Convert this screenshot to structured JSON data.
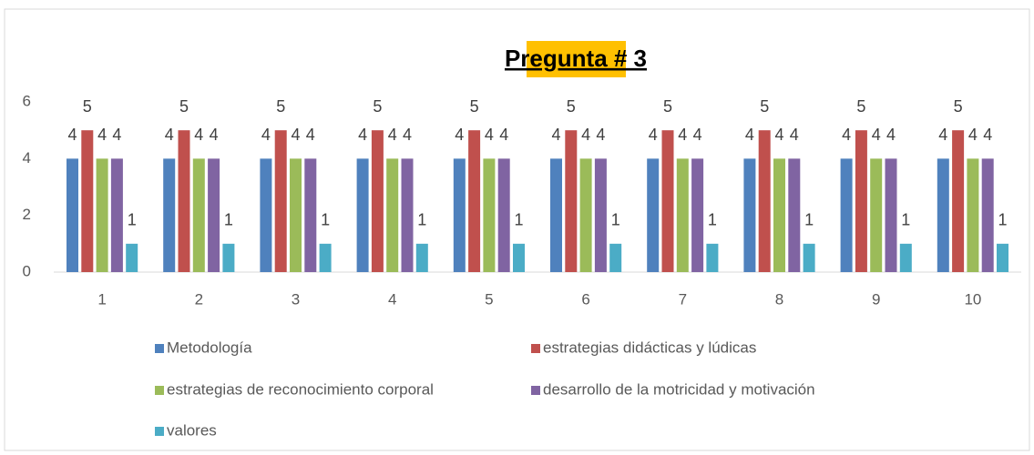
{
  "chart_data": {
    "type": "bar",
    "title": "Pregunta # 3",
    "categories": [
      "1",
      "2",
      "3",
      "4",
      "5",
      "6",
      "7",
      "8",
      "9",
      "10"
    ],
    "series": [
      {
        "name": "Metodología",
        "color": "#4F81BD",
        "values": [
          4,
          4,
          4,
          4,
          4,
          4,
          4,
          4,
          4,
          4
        ]
      },
      {
        "name": "estrategias didácticas y lúdicas",
        "color": "#C0504D",
        "values": [
          5,
          5,
          5,
          5,
          5,
          5,
          5,
          5,
          5,
          5
        ]
      },
      {
        "name": "estrategias de reconocimiento corporal",
        "color": "#9BBB59",
        "values": [
          4,
          4,
          4,
          4,
          4,
          4,
          4,
          4,
          4,
          4
        ]
      },
      {
        "name": "desarrollo de la motricidad y motivación",
        "color": "#8064A2",
        "values": [
          4,
          4,
          4,
          4,
          4,
          4,
          4,
          4,
          4,
          4
        ]
      },
      {
        "name": "valores",
        "color": "#4BACC6",
        "values": [
          1,
          1,
          1,
          1,
          1,
          1,
          1,
          1,
          1,
          1
        ]
      }
    ],
    "ylim": [
      0,
      6
    ],
    "yticks": [
      0,
      2,
      4,
      6
    ],
    "grid": false,
    "data_labels": true,
    "legend": "bottom"
  }
}
